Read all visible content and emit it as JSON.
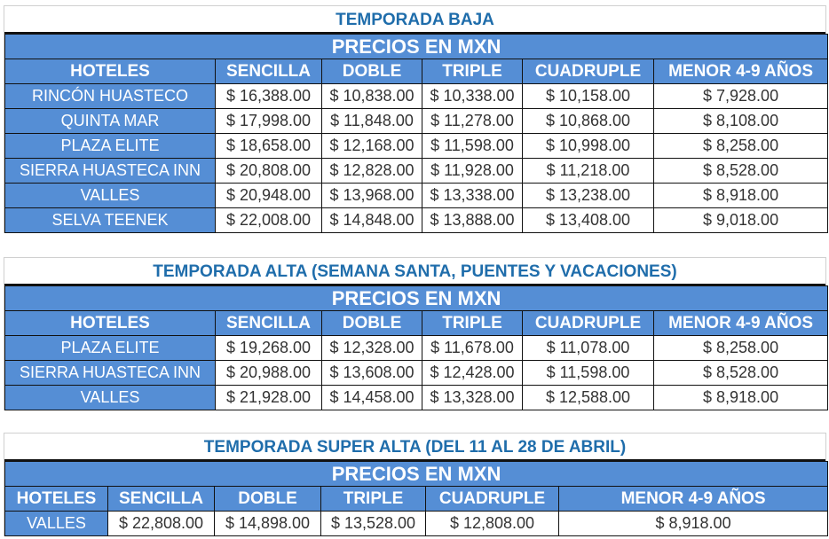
{
  "headers": {
    "precios": "PRECIOS EN MXN",
    "cols": [
      "HOTELES",
      "SENCILLA",
      "DOBLE",
      "TRIPLE",
      "CUADRUPLE",
      "MENOR 4-9 AÑOS"
    ]
  },
  "tables": [
    {
      "title": "TEMPORADA BAJA",
      "rows": [
        [
          "RINCÓN HUASTECO",
          "$ 16,388.00",
          "$ 10,838.00",
          "$ 10,338.00",
          "$ 10,158.00",
          "$ 7,928.00"
        ],
        [
          "QUINTA MAR",
          "$ 17,998.00",
          "$ 11,848.00",
          "$ 11,278.00",
          "$ 10,868.00",
          "$ 8,108.00"
        ],
        [
          "PLAZA ELITE",
          "$ 18,658.00",
          "$ 12,168.00",
          "$ 11,598.00",
          "$ 10,998.00",
          "$ 8,258.00"
        ],
        [
          "SIERRA HUASTECA INN",
          "$ 20,808.00",
          "$ 12,828.00",
          "$ 11,928.00",
          "$ 11,218.00",
          "$ 8,528.00"
        ],
        [
          "VALLES",
          "$ 20,948.00",
          "$ 13,968.00",
          "$ 13,338.00",
          "$ 13,238.00",
          "$ 8,918.00"
        ],
        [
          "SELVA TEENEK",
          "$ 22,008.00",
          "$ 14,848.00",
          "$ 13,888.00",
          "$ 13,408.00",
          "$ 9,018.00"
        ]
      ]
    },
    {
      "title": "TEMPORADA ALTA (SEMANA SANTA, PUENTES Y VACACIONES)",
      "rows": [
        [
          "PLAZA ELITE",
          "$ 19,268.00",
          "$ 12,328.00",
          "$ 11,678.00",
          "$ 11,078.00",
          "$ 8,258.00"
        ],
        [
          "SIERRA HUASTECA INN",
          "$ 20,988.00",
          "$ 13,608.00",
          "$ 12,428.00",
          "$ 11,598.00",
          "$ 8,528.00"
        ],
        [
          "VALLES",
          "$ 21,928.00",
          "$ 14,458.00",
          "$ 13,328.00",
          "$ 12,588.00",
          "$ 8,918.00"
        ]
      ]
    },
    {
      "title": "TEMPORADA SUPER ALTA (DEL 11 AL 28 DE ABRIL)",
      "rows": [
        [
          "VALLES",
          "$ 22,808.00",
          "$ 14,898.00",
          "$ 13,528.00",
          "$ 12,808.00",
          "$ 8,918.00"
        ]
      ]
    }
  ]
}
